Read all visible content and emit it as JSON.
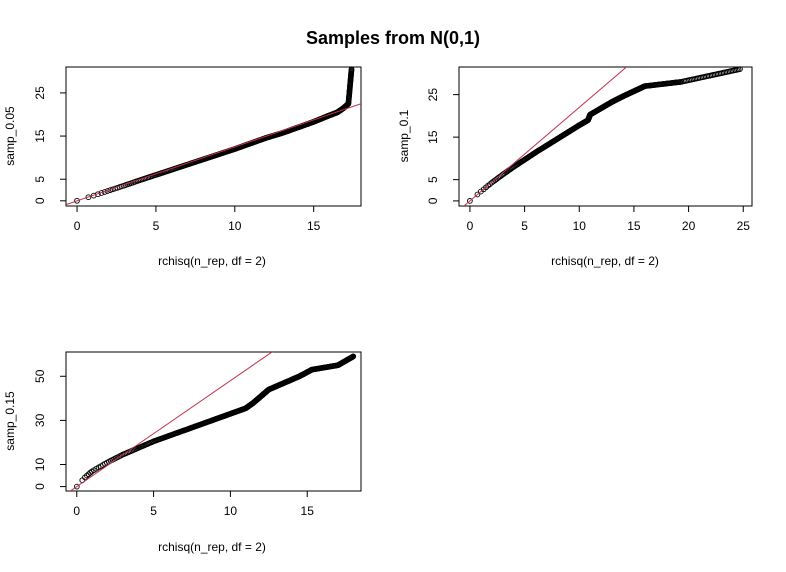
{
  "title": "Samples from N(0,1)",
  "colors": {
    "points": "#000000",
    "reference_line": "#c0304a"
  },
  "chart_data": [
    {
      "type": "scatter",
      "xlabel": "rchisq(n_rep, df = 2)",
      "ylabel": "samp_0.05",
      "xlim": [
        -0.7,
        18.0
      ],
      "ylim": [
        -1.2,
        31.0
      ],
      "xticks": [
        0,
        5,
        10,
        15
      ],
      "yticks": [
        0,
        5,
        15,
        25
      ],
      "reference_line": {
        "slope": 1.25,
        "intercept": 0
      },
      "curve": [
        [
          0,
          0
        ],
        [
          1,
          1.15
        ],
        [
          2,
          2.35
        ],
        [
          3,
          3.55
        ],
        [
          4,
          4.8
        ],
        [
          5,
          6.0
        ],
        [
          6,
          7.2
        ],
        [
          7,
          8.4
        ],
        [
          8,
          9.6
        ],
        [
          9,
          10.8
        ],
        [
          10,
          12.0
        ],
        [
          11,
          13.3
        ],
        [
          12,
          14.6
        ],
        [
          13,
          15.7
        ],
        [
          14,
          17.0
        ],
        [
          15,
          18.3
        ],
        [
          15.8,
          19.5
        ],
        [
          16.5,
          20.5
        ],
        [
          16.9,
          21.5
        ],
        [
          17.2,
          22.5
        ],
        [
          17.4,
          30.5
        ]
      ]
    },
    {
      "type": "scatter",
      "xlabel": "rchisq(n_rep, df = 2)",
      "ylabel": "samp_0.1",
      "xlim": [
        -1.0,
        25.8
      ],
      "ylim": [
        -1.2,
        31.5
      ],
      "xticks": [
        0,
        5,
        10,
        15,
        20,
        25
      ],
      "yticks": [
        0,
        5,
        15,
        25
      ],
      "reference_line": {
        "slope": 2.2,
        "intercept": 0
      },
      "curve": [
        [
          0,
          0
        ],
        [
          1,
          2.2
        ],
        [
          2,
          4.3
        ],
        [
          3,
          6.2
        ],
        [
          4,
          8.0
        ],
        [
          5,
          9.7
        ],
        [
          6,
          11.4
        ],
        [
          7,
          13.0
        ],
        [
          8,
          14.6
        ],
        [
          9,
          16.2
        ],
        [
          10,
          17.8
        ],
        [
          10.8,
          19.0
        ],
        [
          11,
          20.3
        ],
        [
          12,
          21.8
        ],
        [
          13,
          23.3
        ],
        [
          14,
          24.6
        ],
        [
          15,
          25.8
        ],
        [
          16,
          27.0
        ],
        [
          19.3,
          28.0
        ],
        [
          24.7,
          31.0
        ]
      ]
    },
    {
      "type": "scatter",
      "xlabel": "rchisq(n_rep, df = 2)",
      "ylabel": "samp_0.15",
      "xlim": [
        -0.7,
        18.5
      ],
      "ylim": [
        -2.0,
        61.0
      ],
      "xticks": [
        0,
        5,
        10,
        15
      ],
      "yticks": [
        0,
        10,
        30,
        50
      ],
      "reference_line": {
        "slope": 4.8,
        "intercept": 0
      },
      "curve": [
        [
          0,
          0
        ],
        [
          0.5,
          4
        ],
        [
          1,
          7
        ],
        [
          2,
          11
        ],
        [
          3,
          14.5
        ],
        [
          4,
          17.5
        ],
        [
          5,
          20.5
        ],
        [
          6,
          23
        ],
        [
          7,
          25.5
        ],
        [
          8,
          28
        ],
        [
          9,
          30.5
        ],
        [
          10,
          33
        ],
        [
          11,
          35.5
        ],
        [
          11.5,
          38
        ],
        [
          12,
          41
        ],
        [
          12.5,
          44
        ],
        [
          13.5,
          47
        ],
        [
          14.5,
          50
        ],
        [
          15.3,
          53
        ],
        [
          17,
          55
        ],
        [
          18,
          59
        ]
      ]
    }
  ]
}
